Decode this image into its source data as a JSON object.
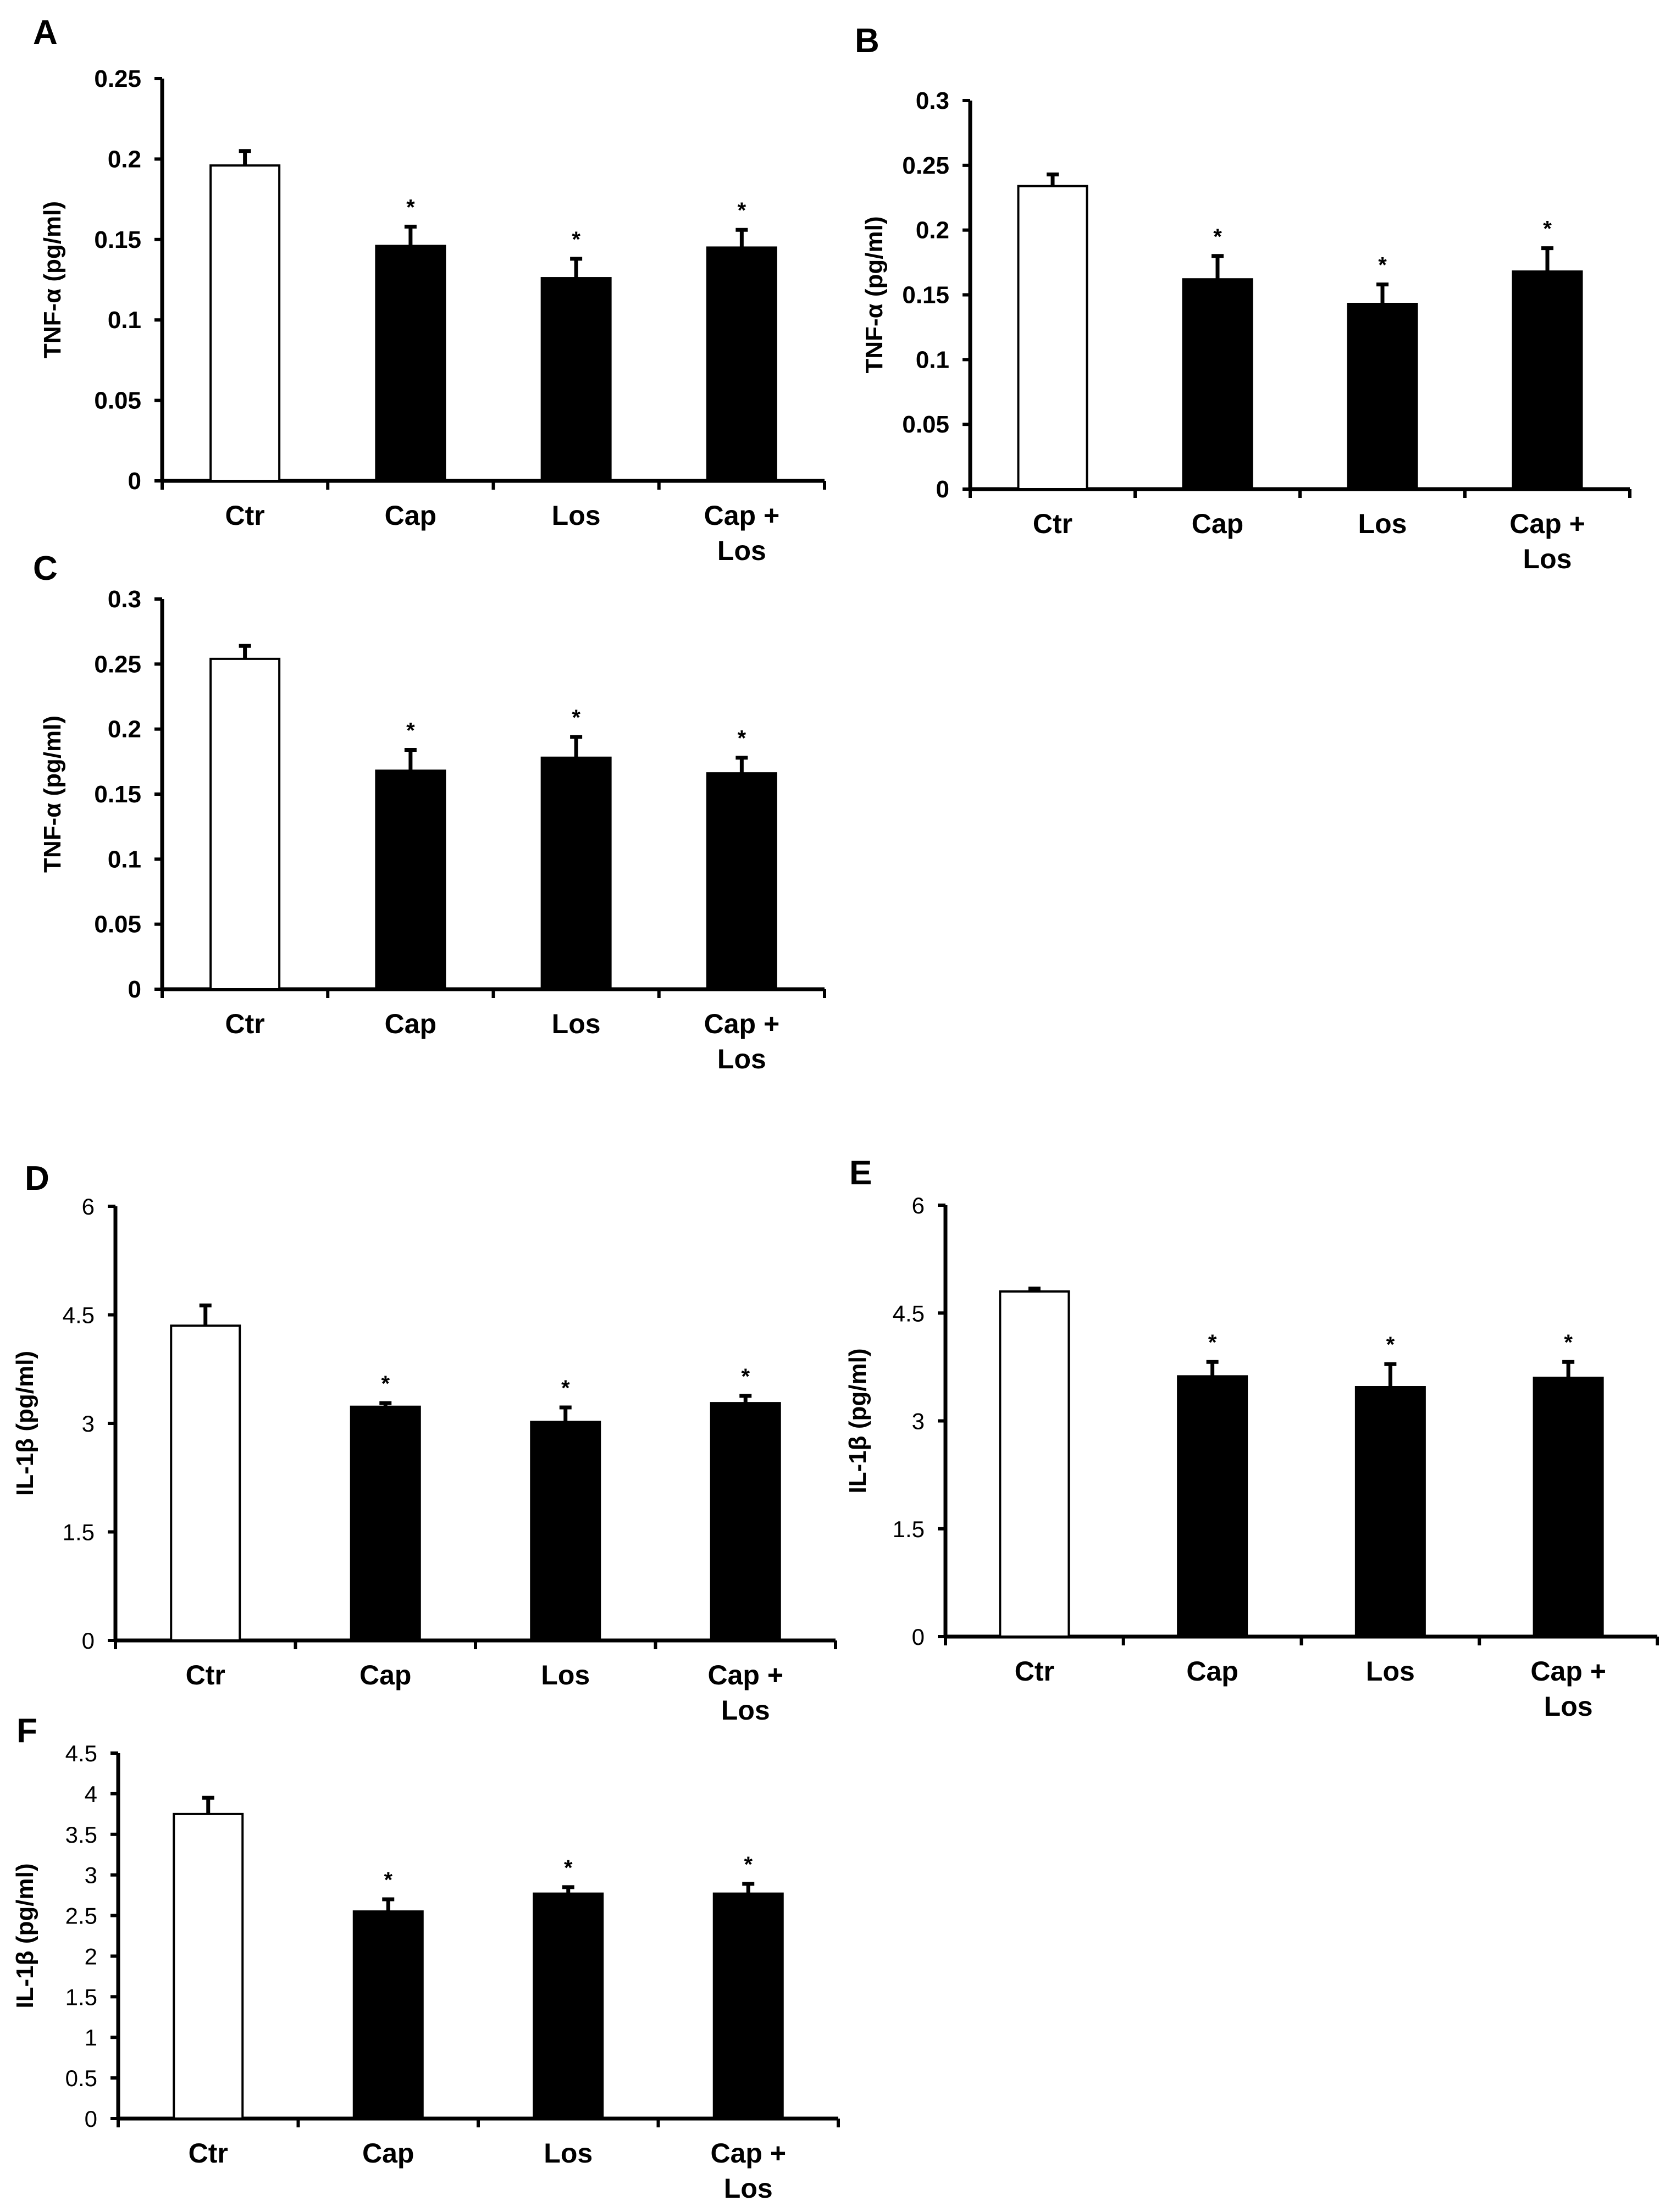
{
  "chart_data": [
    {
      "panel": "A",
      "type": "bar",
      "categories": [
        "Ctr",
        "Cap",
        "Los",
        "Cap + Los"
      ],
      "values": [
        0.196,
        0.146,
        0.126,
        0.145
      ],
      "errors": [
        0.009,
        0.012,
        0.012,
        0.011
      ],
      "bar_fills": [
        "#ffffff",
        "#000000",
        "#000000",
        "#000000"
      ],
      "significance": [
        "",
        "*",
        "*",
        "*"
      ],
      "ylabel": "TNF-α (pg/ml)",
      "ylim": [
        0,
        0.25
      ],
      "yticks": [
        "0",
        "0.05",
        "0.1",
        "0.15",
        "0.2",
        "0.25"
      ]
    },
    {
      "panel": "B",
      "type": "bar",
      "categories": [
        "Ctr",
        "Cap",
        "Los",
        "Cap + Los"
      ],
      "values": [
        0.234,
        0.162,
        0.143,
        0.168
      ],
      "errors": [
        0.009,
        0.018,
        0.015,
        0.018
      ],
      "bar_fills": [
        "#ffffff",
        "#000000",
        "#000000",
        "#000000"
      ],
      "significance": [
        "",
        "*",
        "*",
        "*"
      ],
      "ylabel": "TNF-α (pg/ml)",
      "ylim": [
        0,
        0.3
      ],
      "yticks": [
        "0",
        "0.05",
        "0.1",
        "0.15",
        "0.2",
        "0.25",
        "0.3"
      ]
    },
    {
      "panel": "C",
      "type": "bar",
      "categories": [
        "Ctr",
        "Cap",
        "Los",
        "Cap + Los"
      ],
      "values": [
        0.254,
        0.168,
        0.178,
        0.166
      ],
      "errors": [
        0.01,
        0.016,
        0.016,
        0.012
      ],
      "bar_fills": [
        "#ffffff",
        "#000000",
        "#000000",
        "#000000"
      ],
      "significance": [
        "",
        "*",
        "*",
        "*"
      ],
      "ylabel": "TNF-α (pg/ml)",
      "ylim": [
        0,
        0.3
      ],
      "yticks": [
        "0",
        "0.05",
        "0.1",
        "0.15",
        "0.2",
        "0.25",
        "0.3"
      ]
    },
    {
      "panel": "D",
      "type": "bar",
      "categories": [
        "Ctr",
        "Cap",
        "Los",
        "Cap + Los"
      ],
      "values": [
        4.35,
        3.23,
        3.02,
        3.28
      ],
      "errors": [
        0.28,
        0.05,
        0.2,
        0.1
      ],
      "bar_fills": [
        "#ffffff",
        "#000000",
        "#000000",
        "#000000"
      ],
      "significance": [
        "",
        "*",
        "*",
        "*"
      ],
      "ylabel": "IL-1β (pg/ml)",
      "ylim": [
        0,
        6
      ],
      "yticks": [
        "0",
        "1.5",
        "3",
        "4.5",
        "6"
      ]
    },
    {
      "panel": "E",
      "type": "bar",
      "categories": [
        "Ctr",
        "Cap",
        "Los",
        "Cap + Los"
      ],
      "values": [
        4.8,
        3.62,
        3.47,
        3.6
      ],
      "errors": [
        0.04,
        0.2,
        0.32,
        0.22
      ],
      "bar_fills": [
        "#ffffff",
        "#000000",
        "#000000",
        "#000000"
      ],
      "significance": [
        "",
        "*",
        "*",
        "*"
      ],
      "ylabel": "IL-1β (pg/ml)",
      "ylim": [
        0,
        6
      ],
      "yticks": [
        "0",
        "1.5",
        "3",
        "4.5",
        "6"
      ]
    },
    {
      "panel": "F",
      "type": "bar",
      "categories": [
        "Ctr",
        "Cap",
        "Los",
        "Cap + Los"
      ],
      "values": [
        3.75,
        2.55,
        2.77,
        2.77
      ],
      "errors": [
        0.2,
        0.15,
        0.08,
        0.12
      ],
      "bar_fills": [
        "#ffffff",
        "#000000",
        "#000000",
        "#000000"
      ],
      "significance": [
        "",
        "*",
        "*",
        "*"
      ],
      "ylabel": "IL-1β (pg/ml)",
      "ylim": [
        0,
        4.5
      ],
      "yticks": [
        "0",
        "0.5",
        "1",
        "1.5",
        "2",
        "2.5",
        "3",
        "3.5",
        "4",
        "4.5"
      ]
    }
  ]
}
